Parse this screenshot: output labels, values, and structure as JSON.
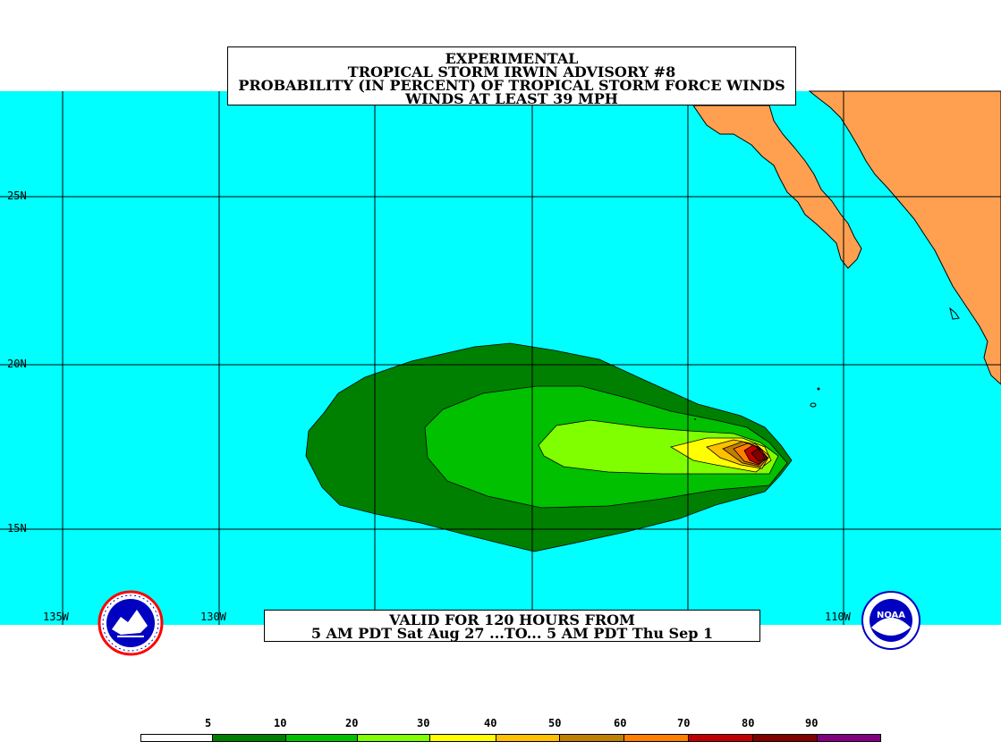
{
  "title": {
    "line1": "EXPERIMENTAL",
    "line2": "TROPICAL STORM IRWIN ADVISORY #8",
    "line3": "PROBABILITY (IN PERCENT) OF TROPICAL STORM FORCE WINDS",
    "line4": "WINDS AT LEAST 39 MPH"
  },
  "valid": {
    "line1": "VALID FOR 120 HOURS FROM",
    "line2": "5 AM PDT Sat Aug 27 ...TO... 5 AM PDT Thu Sep 1"
  },
  "lat_labels": [
    "25N",
    "20N",
    "15N"
  ],
  "lon_labels": [
    "135W",
    "130W",
    "110W"
  ],
  "legend": {
    "labels": [
      "5",
      "10",
      "20",
      "30",
      "40",
      "50",
      "60",
      "70",
      "80",
      "90"
    ],
    "colors": [
      "#ffffff",
      "#008000",
      "#00c000",
      "#80ff00",
      "#ffff00",
      "#ffc000",
      "#c08000",
      "#ff8000",
      "#c00000",
      "#800000",
      "#800080"
    ]
  },
  "colors": {
    "ocean": "#00ffff",
    "land": "#ffa050",
    "c5": "#008000",
    "c10": "#00c000",
    "c20": "#80ff00",
    "c30": "#ffff00",
    "c40": "#ffc000",
    "c50": "#c08000",
    "c60": "#ff8000",
    "c70": "#c00000",
    "c80": "#800000"
  },
  "logos": {
    "left": "nws-logo-icon",
    "right": "noaa-logo-icon",
    "noaa_text": "NOAA"
  }
}
